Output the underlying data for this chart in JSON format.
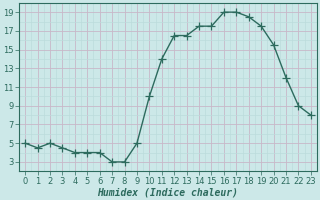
{
  "x": [
    0,
    1,
    2,
    3,
    4,
    5,
    6,
    7,
    8,
    9,
    10,
    11,
    12,
    13,
    14,
    15,
    16,
    17,
    18,
    19,
    20,
    21,
    22,
    23
  ],
  "y": [
    5,
    4.5,
    5,
    4.5,
    4,
    4,
    4,
    3,
    3,
    5,
    10,
    14,
    16.5,
    16.5,
    17.5,
    17.5,
    19,
    19,
    18.5,
    17.5,
    15.5,
    12,
    9,
    8
  ],
  "line_color": "#2d6b5e",
  "marker_color": "#2d6b5e",
  "bg_color": "#cce8e8",
  "grid_major_color": "#c8b8c8",
  "grid_minor_color": "#bcdcdc",
  "xlabel": "Humidex (Indice chaleur)",
  "xlim": [
    -0.5,
    23.5
  ],
  "ylim": [
    2,
    20
  ],
  "yticks": [
    3,
    5,
    7,
    9,
    11,
    13,
    15,
    17,
    19
  ],
  "xticks": [
    0,
    1,
    2,
    3,
    4,
    5,
    6,
    7,
    8,
    9,
    10,
    11,
    12,
    13,
    14,
    15,
    16,
    17,
    18,
    19,
    20,
    21,
    22,
    23
  ],
  "xlabel_fontsize": 7,
  "tick_fontsize": 6,
  "marker_size": 3,
  "line_width": 1.0
}
